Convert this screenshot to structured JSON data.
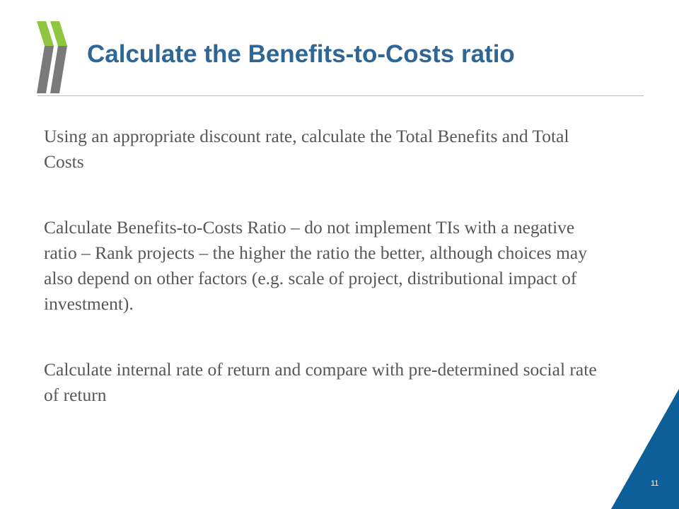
{
  "slide": {
    "title": "Calculate the Benefits-to-Costs ratio",
    "paragraphs": [
      "Using an appropriate discount rate, calculate the Total Benefits and Total Costs",
      "Calculate Benefits-to-Costs Ratio – do not implement TIs with a negative ratio – Rank projects – the higher the ratio the better, although choices may also depend on other factors (e.g. scale of project, distributional impact of investment).",
      "Calculate internal rate of return and compare with pre-determined social rate of return"
    ],
    "page_number": "11"
  },
  "colors": {
    "title": "#2e6696",
    "body_text": "#575757",
    "logo_green": "#8dc63f",
    "logo_grey": "#7a7a7a",
    "corner_blue": "#0d5f9a"
  },
  "icons": {
    "logo": "double-chevron-logo-icon"
  }
}
